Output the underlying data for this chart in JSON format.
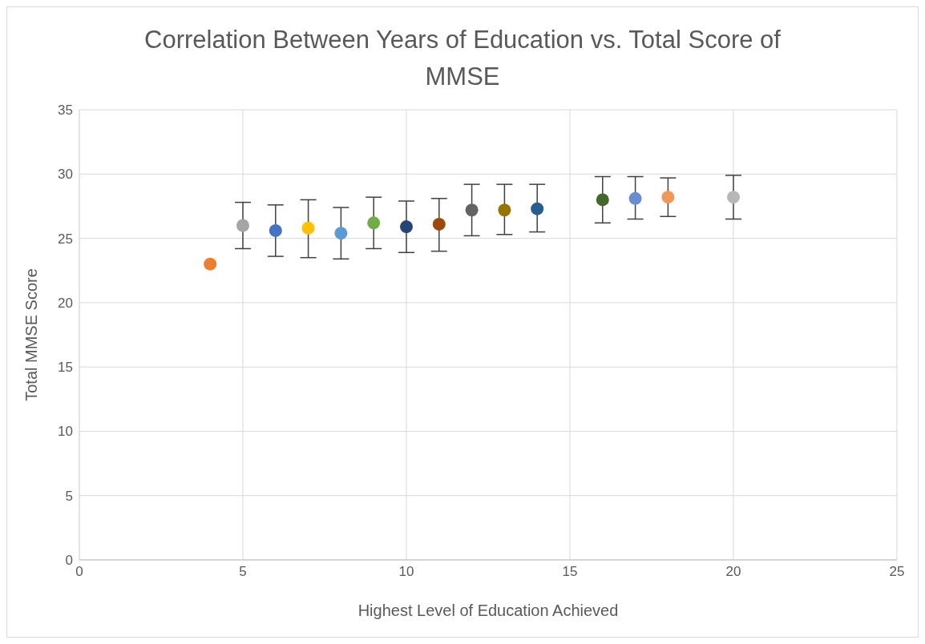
{
  "chart_data": {
    "type": "scatter",
    "title": "Correlation Between Years of Education vs. Total Score of MMSE",
    "xlabel": "Highest Level of Education Achieved",
    "ylabel": "Total MMSE Score",
    "x": [
      4,
      5,
      6,
      7,
      8,
      9,
      10,
      11,
      12,
      13,
      14,
      16,
      17,
      18,
      20
    ],
    "values": [
      23.0,
      26.0,
      25.6,
      25.8,
      25.4,
      26.2,
      25.9,
      26.1,
      27.2,
      27.2,
      27.3,
      28.0,
      28.1,
      28.2,
      28.2
    ],
    "errors": [
      null,
      [
        24.2,
        27.8
      ],
      [
        23.6,
        27.6
      ],
      [
        23.5,
        28.0
      ],
      [
        23.4,
        27.4
      ],
      [
        24.2,
        28.2
      ],
      [
        23.9,
        27.9
      ],
      [
        24.0,
        28.1
      ],
      [
        25.2,
        29.2
      ],
      [
        25.3,
        29.2
      ],
      [
        25.5,
        29.2
      ],
      [
        26.2,
        29.8
      ],
      [
        26.5,
        29.8
      ],
      [
        26.7,
        29.7
      ],
      [
        26.5,
        29.9
      ]
    ],
    "colors": [
      "#ed7d31",
      "#a5a5a5",
      "#4472c4",
      "#ffc000",
      "#5b9bd5",
      "#70ad47",
      "#264478",
      "#9e480e",
      "#636363",
      "#997300",
      "#255e91",
      "#43682b",
      "#698ed0",
      "#f1975a",
      "#b7b7b7"
    ],
    "xlim": [
      0,
      25
    ],
    "xticks": [
      0,
      5,
      10,
      15,
      20,
      25
    ],
    "ylim": [
      0,
      35
    ],
    "yticks": [
      0,
      5,
      10,
      15,
      20,
      25,
      30,
      35
    ],
    "grid": true,
    "marker": "circle",
    "legend": false
  }
}
